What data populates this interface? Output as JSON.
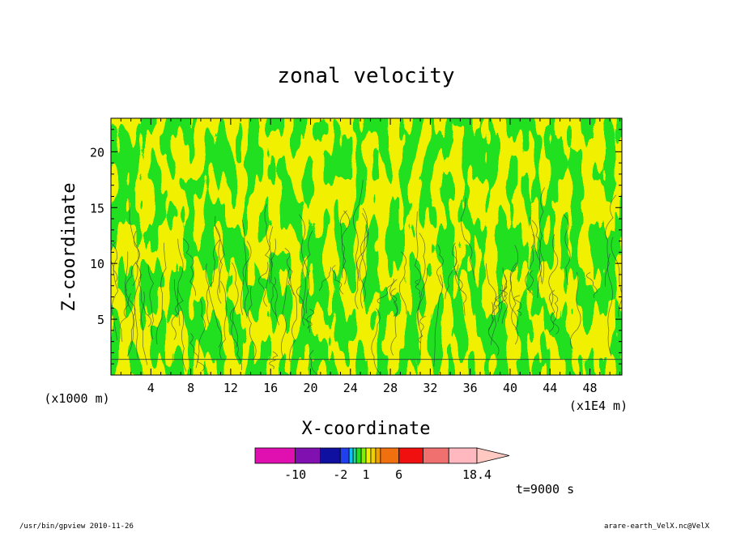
{
  "chart_data": {
    "type": "heatmap",
    "title": "zonal velocity",
    "xlabel": "X-coordinate",
    "ylabel": "Z-coordinate",
    "x_scale_note_left": "(x1000 m)",
    "x_scale_note_right": "(x1E4 m)",
    "x_ticks": [
      "4",
      "8",
      "12",
      "16",
      "20",
      "24",
      "28",
      "32",
      "36",
      "40",
      "44",
      "48"
    ],
    "y_ticks": [
      "5",
      "10",
      "15",
      "20"
    ],
    "xlim": [
      0,
      51.2
    ],
    "ylim": [
      0,
      23
    ],
    "colorbar": {
      "levels": [
        -16,
        -10,
        -6,
        -2,
        -1,
        -0.5,
        0,
        0.5,
        1,
        2,
        3,
        4,
        6,
        10,
        14,
        18.4
      ],
      "colors": [
        "#e010b0",
        "#8010b0",
        "#1010a0",
        "#2040f0",
        "#10c0f0",
        "#10e0a0",
        "#20e020",
        "#80f000",
        "#f0f000",
        "#f0d000",
        "#f0a000",
        "#f07010",
        "#f01010",
        "#f07070",
        "#ffb8c0"
      ],
      "labels": [
        {
          "text": "-10",
          "value": -10
        },
        {
          "text": "-2",
          "value": -2
        },
        {
          "text": "1",
          "value": 1
        },
        {
          "text": "6",
          "value": 6
        },
        {
          "text": "18.4",
          "value": 18.4
        }
      ],
      "extend_color": "#ffc8c0"
    },
    "dominant_field_colors": {
      "positive": "#f0f000",
      "negative": "#20e020"
    },
    "time_label": "t=9000 s"
  },
  "footer": {
    "left": "/usr/bin/gpview   2010-11-26",
    "right": "arare-earth_VelX.nc@VelX"
  }
}
